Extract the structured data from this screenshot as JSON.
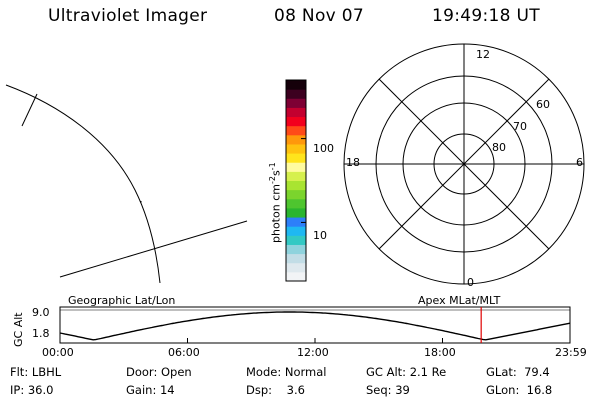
{
  "header": {
    "instrument": "Ultraviolet Imager",
    "date": "08 Nov 07",
    "time": "19:49:18 UT"
  },
  "colorbar": {
    "label": "photon cm",
    "label_sup1": "-2",
    "label_mid": "s",
    "label_sup2": "-1",
    "ticks": [
      {
        "value": 100,
        "label": "100"
      },
      {
        "value": 10,
        "label": "10"
      }
    ],
    "scale": "log",
    "range": [
      2,
      500
    ],
    "colors": [
      "#f2f4f6",
      "#dfe9ee",
      "#c2dde6",
      "#8fd3dd",
      "#33c9c4",
      "#1fb8f2",
      "#2d7ff9",
      "#2ab52f",
      "#4ec52f",
      "#7bd42d",
      "#a9e431",
      "#d6f04d",
      "#fffb9f",
      "#ffe41c",
      "#ffc20f",
      "#ff980b",
      "#ff4a18",
      "#f2001d",
      "#c3002f",
      "#7e0034",
      "#3c001f",
      "#15000a"
    ]
  },
  "polar": {
    "mlt_labels": {
      "top": "12",
      "left": "18",
      "right": "6",
      "bottom": "0"
    },
    "lat_labels": [
      "60",
      "70",
      "80"
    ]
  },
  "strip": {
    "left_label": "Geographic Lat/Lon",
    "right_label": "Apex MLat/MLT",
    "ylabel": "GC Alt",
    "yticks": [
      "9.0",
      "1.8"
    ],
    "xticks": [
      "00:00",
      "06:00",
      "12:00",
      "18:00",
      "23:59"
    ],
    "marker_time_hours": 19.82,
    "marker_color": "#e00000"
  },
  "status": {
    "row1": [
      {
        "label": "Flt:",
        "value": "LBHL"
      },
      {
        "label": "Door:",
        "value": "Open"
      },
      {
        "label": "Mode:",
        "value": "Normal"
      },
      {
        "label": "GC Alt:",
        "value": "2.1 Re"
      },
      {
        "label": "GLat:",
        "value": "79.4"
      }
    ],
    "row2": [
      {
        "label": "IP:",
        "value": "36.0"
      },
      {
        "label": "Gain:",
        "value": "14"
      },
      {
        "label": "Dsp:",
        "value": "3.6"
      },
      {
        "label": "Seq:",
        "value": "39"
      },
      {
        "label": "GLon:",
        "value": "16.8"
      }
    ]
  }
}
